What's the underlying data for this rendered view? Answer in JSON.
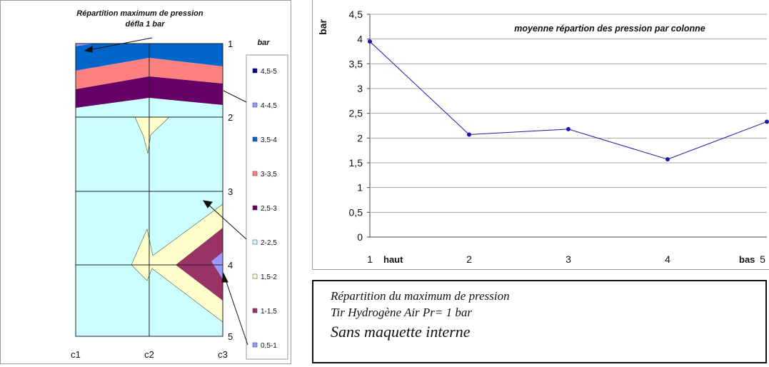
{
  "chart_data": [
    {
      "type": "contour",
      "title": "Répartition maximum de pression",
      "subtitle": "défla 1 bar",
      "x_categories": [
        "c1",
        "c2",
        "c3"
      ],
      "y_ticks": [
        "1",
        "2",
        "3",
        "4",
        "5"
      ],
      "legend_title": "bar",
      "legend": [
        {
          "label": "4,5-5",
          "color": "#000080"
        },
        {
          "label": "4-4,5",
          "color": "#9999ff"
        },
        {
          "label": "3,5-4",
          "color": "#0066cc"
        },
        {
          "label": "3-3,5",
          "color": "#ff8080"
        },
        {
          "label": "2,5-3",
          "color": "#660066"
        },
        {
          "label": "2-2,5",
          "color": "#ccffff"
        },
        {
          "label": "1,5-2",
          "color": "#ffffcc"
        },
        {
          "label": "1-1,5",
          "color": "#993366"
        },
        {
          "label": "0,5-1",
          "color": "#9999ff"
        }
      ],
      "legend_position": "right",
      "grid": true
    },
    {
      "type": "line",
      "title": "moyenne répartion des pression par colonne",
      "ylabel": "bar",
      "x": [
        1,
        2,
        3,
        4,
        5
      ],
      "x_tick_labels": [
        "1",
        "2",
        "3",
        "4",
        "5"
      ],
      "x_annotations": {
        "start": "haut",
        "end": "bas"
      },
      "series": [
        {
          "values": [
            3.95,
            2.07,
            2.18,
            1.57,
            2.33
          ],
          "color": "#1a1aaa"
        }
      ],
      "ylim": [
        0,
        4.5
      ],
      "y_ticks": [
        "0",
        "0,5",
        "1",
        "1,5",
        "2",
        "2,5",
        "3",
        "3,5",
        "4",
        "4,5"
      ],
      "grid": true
    }
  ],
  "caption": {
    "line1": "Répartition du maximum de pression",
    "line2": "Tir Hydrogène Air Pr= 1 bar",
    "line3": "Sans maquette interne"
  }
}
